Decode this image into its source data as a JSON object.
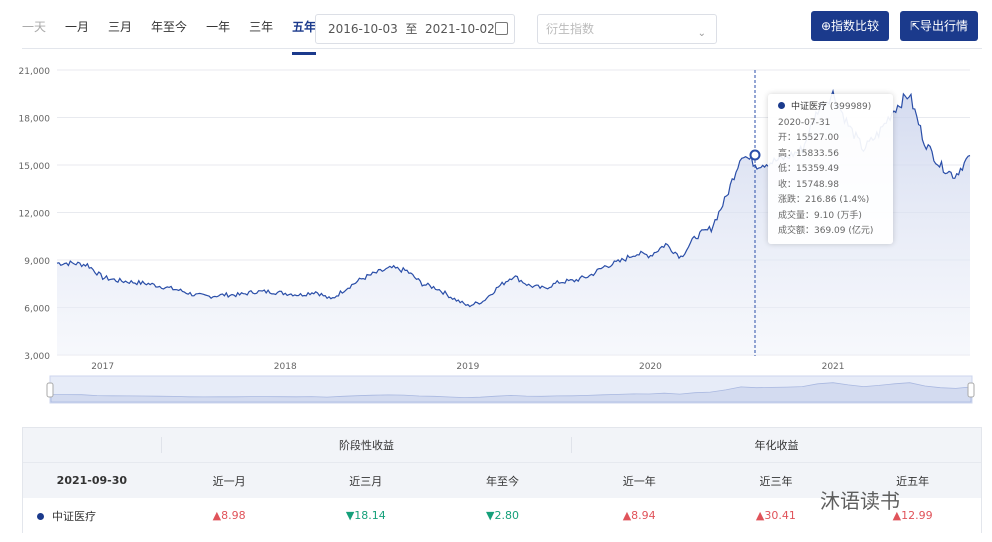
{
  "tabs": [
    {
      "label": "一天",
      "state": "disabled"
    },
    {
      "label": "一月"
    },
    {
      "label": "三月"
    },
    {
      "label": "年至今"
    },
    {
      "label": "一年"
    },
    {
      "label": "三年"
    },
    {
      "label": "五年",
      "active": true
    }
  ],
  "date_range": {
    "start": "2016-10-03",
    "sep": "至",
    "end": "2021-10-02"
  },
  "derived_select": {
    "placeholder": "衍生指数"
  },
  "buttons": {
    "compare": "⊕指数比较",
    "export": "⇱导出行情"
  },
  "colors": {
    "accent": "#1b3a8c",
    "up": "#e0535a",
    "down": "#15a07a"
  },
  "chart_data": {
    "type": "area",
    "ylim": [
      3000,
      21000
    ],
    "y_ticks": [
      "3,000",
      "6,000",
      "9,000",
      "12,000",
      "15,000",
      "18,000",
      "21,000"
    ],
    "x_ticks": [
      "2017",
      "2018",
      "2019",
      "2020",
      "2021"
    ],
    "grid": true,
    "series": [
      {
        "name": "中证医疗",
        "x": [
          "2016-10",
          "2016-11",
          "2016-12",
          "2017-01",
          "2017-02",
          "2017-03",
          "2017-04",
          "2017-05",
          "2017-06",
          "2017-07",
          "2017-08",
          "2017-09",
          "2017-10",
          "2017-11",
          "2017-12",
          "2018-01",
          "2018-02",
          "2018-03",
          "2018-04",
          "2018-05",
          "2018-06",
          "2018-07",
          "2018-08",
          "2018-09",
          "2018-10",
          "2018-11",
          "2018-12",
          "2019-01",
          "2019-02",
          "2019-03",
          "2019-04",
          "2019-05",
          "2019-06",
          "2019-07",
          "2019-08",
          "2019-09",
          "2019-10",
          "2019-11",
          "2019-12",
          "2020-01",
          "2020-02",
          "2020-03",
          "2020-04",
          "2020-05",
          "2020-06",
          "2020-07",
          "2020-08",
          "2020-09",
          "2020-10",
          "2020-11",
          "2020-12",
          "2021-01",
          "2021-02",
          "2021-03",
          "2021-04",
          "2021-05",
          "2021-06",
          "2021-07",
          "2021-08",
          "2021-09",
          "2021-10"
        ],
        "values": [
          8800,
          8800,
          8700,
          7900,
          7700,
          7600,
          7500,
          7300,
          7100,
          6800,
          6700,
          6800,
          6800,
          7000,
          7000,
          6900,
          6800,
          7000,
          6500,
          7200,
          7800,
          8200,
          8500,
          8300,
          7500,
          7200,
          6600,
          6100,
          6400,
          7300,
          8000,
          7400,
          7200,
          7600,
          7700,
          8000,
          8600,
          8900,
          9400,
          9300,
          10000,
          9200,
          10500,
          11000,
          13000,
          15700,
          15000,
          15200,
          15500,
          16000,
          18500,
          19500,
          17500,
          16000,
          17000,
          18500,
          19500,
          16500,
          15000,
          14300,
          15600
        ]
      }
    ]
  },
  "tooltip": {
    "name": "中证医疗",
    "code": "(399989)",
    "date": "2020-07-31",
    "lines": [
      {
        "label": "开：",
        "value": "15527.00"
      },
      {
        "label": "高：",
        "value": "15833.56"
      },
      {
        "label": "低：",
        "value": "15359.49"
      },
      {
        "label": "收：",
        "value": "15748.98"
      },
      {
        "label": "涨跌：",
        "value": "216.86 (1.4%)"
      },
      {
        "label": "成交量：",
        "value": "9.10 (万手)"
      },
      {
        "label": "成交额：",
        "value": "369.09 (亿元)"
      }
    ]
  },
  "table": {
    "group1": "阶段性收益",
    "group2": "年化收益",
    "date": "2021-09-30",
    "columns": [
      "近一月",
      "近三月",
      "年至今",
      "近一年",
      "近三年",
      "近五年"
    ],
    "row": {
      "name": "中证医疗",
      "values": [
        {
          "v": "▲8.98",
          "dir": "up"
        },
        {
          "v": "▼18.14",
          "dir": "down"
        },
        {
          "v": "▼2.80",
          "dir": "down"
        },
        {
          "v": "▲8.94",
          "dir": "up"
        },
        {
          "v": "▲30.41",
          "dir": "up"
        },
        {
          "v": "▲12.99",
          "dir": "up"
        }
      ]
    }
  },
  "watermark": "沐语读书"
}
